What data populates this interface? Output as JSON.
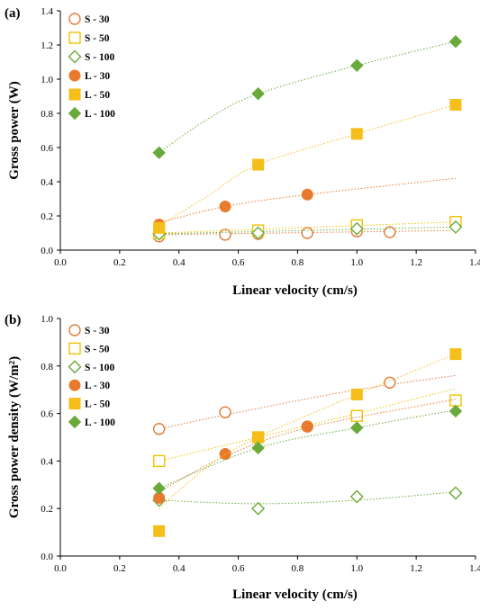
{
  "chart_data": [
    {
      "panel": "(a)",
      "type": "scatter",
      "xlabel": "Linear velocity (cm/s)",
      "ylabel": "Gross power (W)",
      "xlim": [
        0,
        1.4
      ],
      "ylim": [
        0,
        1.4
      ],
      "xticks": [
        "0.0",
        "0.2",
        "0.4",
        "0.6",
        "0.8",
        "1.0",
        "1.2",
        "1.4"
      ],
      "yticks": [
        "0.0",
        "0.2",
        "0.4",
        "0.6",
        "0.8",
        "1.0",
        "1.2",
        "1.4"
      ],
      "grid": false,
      "legend_position": "top-left",
      "series": [
        {
          "name": "S - 30",
          "marker": "circle",
          "filled": false,
          "color": "#E07B39",
          "x": [
            0.333,
            0.556,
            0.667,
            0.833,
            1.0,
            1.111
          ],
          "y": [
            0.08,
            0.09,
            0.095,
            0.1,
            0.11,
            0.105
          ],
          "trend": [
            [
              0.333,
              0.09
            ],
            [
              1.333,
              0.115
            ]
          ]
        },
        {
          "name": "S - 50",
          "marker": "square",
          "filled": false,
          "color": "#F2C200",
          "x": [
            0.333,
            0.667,
            1.0,
            1.333
          ],
          "y": [
            0.1,
            0.115,
            0.145,
            0.165
          ],
          "trend": [
            [
              0.333,
              0.1
            ],
            [
              1.333,
              0.165
            ]
          ]
        },
        {
          "name": "S - 100",
          "marker": "diamond",
          "filled": false,
          "color": "#6AAA3A",
          "x": [
            0.333,
            0.667,
            1.0,
            1.333
          ],
          "y": [
            0.095,
            0.1,
            0.125,
            0.135
          ],
          "trend": [
            [
              0.333,
              0.095
            ],
            [
              1.333,
              0.135
            ]
          ]
        },
        {
          "name": "L - 30",
          "marker": "circle",
          "filled": true,
          "color": "#E87A2E",
          "x": [
            0.333,
            0.556,
            0.833
          ],
          "y": [
            0.15,
            0.255,
            0.325
          ],
          "trend": [
            [
              0.333,
              0.16
            ],
            [
              0.556,
              0.255
            ],
            [
              0.833,
              0.325
            ],
            [
              1.333,
              0.42
            ]
          ]
        },
        {
          "name": "L - 50",
          "marker": "square",
          "filled": true,
          "color": "#F5BE1A",
          "x": [
            0.333,
            0.667,
            1.0,
            1.333
          ],
          "y": [
            0.13,
            0.5,
            0.68,
            0.85
          ],
          "trend": [
            [
              0.333,
              0.14
            ],
            [
              0.5,
              0.32
            ],
            [
              0.667,
              0.5
            ],
            [
              1.0,
              0.68
            ],
            [
              1.333,
              0.85
            ]
          ]
        },
        {
          "name": "L - 100",
          "marker": "diamond",
          "filled": true,
          "color": "#6AAA3A",
          "x": [
            0.333,
            0.667,
            1.0,
            1.333
          ],
          "y": [
            0.57,
            0.915,
            1.08,
            1.22
          ],
          "trend": [
            [
              0.333,
              0.57
            ],
            [
              0.5,
              0.77
            ],
            [
              0.667,
              0.915
            ],
            [
              1.0,
              1.08
            ],
            [
              1.333,
              1.22
            ]
          ]
        }
      ]
    },
    {
      "panel": "(b)",
      "type": "scatter",
      "xlabel": "Linear velocity (cm/s)",
      "ylabel": "Gross power density (W/m²)",
      "xlim": [
        0,
        1.4
      ],
      "ylim": [
        0,
        1.0
      ],
      "xticks": [
        "0.0",
        "0.2",
        "0.4",
        "0.6",
        "0.8",
        "1.0",
        "1.2",
        "1.4"
      ],
      "yticks": [
        "0.0",
        "0.2",
        "0.4",
        "0.6",
        "0.8",
        "1.0"
      ],
      "grid": false,
      "legend_position": "top-left",
      "series": [
        {
          "name": "S - 30",
          "marker": "circle",
          "filled": false,
          "color": "#E07B39",
          "x": [
            0.333,
            0.556,
            0.833,
            1.111
          ],
          "y": [
            0.535,
            0.605,
            0.545,
            0.73
          ],
          "trend": [
            [
              0.333,
              0.535
            ],
            [
              0.6,
              0.605
            ],
            [
              1.0,
              0.7
            ],
            [
              1.333,
              0.76
            ]
          ]
        },
        {
          "name": "S - 50",
          "marker": "square",
          "filled": false,
          "color": "#F2C200",
          "x": [
            0.333,
            0.667,
            1.0,
            1.333
          ],
          "y": [
            0.4,
            0.5,
            0.59,
            0.655
          ],
          "trend": [
            [
              0.333,
              0.4
            ],
            [
              0.667,
              0.5
            ],
            [
              1.0,
              0.6
            ],
            [
              1.333,
              0.705
            ]
          ]
        },
        {
          "name": "S - 100",
          "marker": "diamond",
          "filled": false,
          "color": "#6AAA3A",
          "x": [
            0.333,
            0.667,
            1.0,
            1.333
          ],
          "y": [
            0.235,
            0.2,
            0.25,
            0.265
          ],
          "trend": [
            [
              0.333,
              0.235
            ],
            [
              0.667,
              0.22
            ],
            [
              1.0,
              0.235
            ],
            [
              1.333,
              0.27
            ]
          ]
        },
        {
          "name": "L - 30",
          "marker": "circle",
          "filled": true,
          "color": "#E87A2E",
          "x": [
            0.333,
            0.556,
            0.833
          ],
          "y": [
            0.245,
            0.43,
            0.545
          ],
          "trend": [
            [
              0.333,
              0.27
            ],
            [
              0.556,
              0.42
            ],
            [
              0.833,
              0.54
            ],
            [
              1.333,
              0.66
            ]
          ]
        },
        {
          "name": "L - 50",
          "marker": "square",
          "filled": true,
          "color": "#F5BE1A",
          "x": [
            0.333,
            0.667,
            1.0,
            1.333
          ],
          "y": [
            0.105,
            0.5,
            0.68,
            0.85
          ],
          "trend": [
            [
              0.333,
              0.2
            ],
            [
              0.5,
              0.38
            ],
            [
              0.667,
              0.5
            ],
            [
              1.0,
              0.68
            ],
            [
              1.333,
              0.85
            ]
          ]
        },
        {
          "name": "L - 100",
          "marker": "diamond",
          "filled": true,
          "color": "#6AAA3A",
          "x": [
            0.333,
            0.667,
            1.0,
            1.333
          ],
          "y": [
            0.285,
            0.455,
            0.54,
            0.61
          ],
          "trend": [
            [
              0.333,
              0.285
            ],
            [
              0.667,
              0.455
            ],
            [
              1.0,
              0.54
            ],
            [
              1.333,
              0.615
            ]
          ]
        }
      ]
    }
  ]
}
